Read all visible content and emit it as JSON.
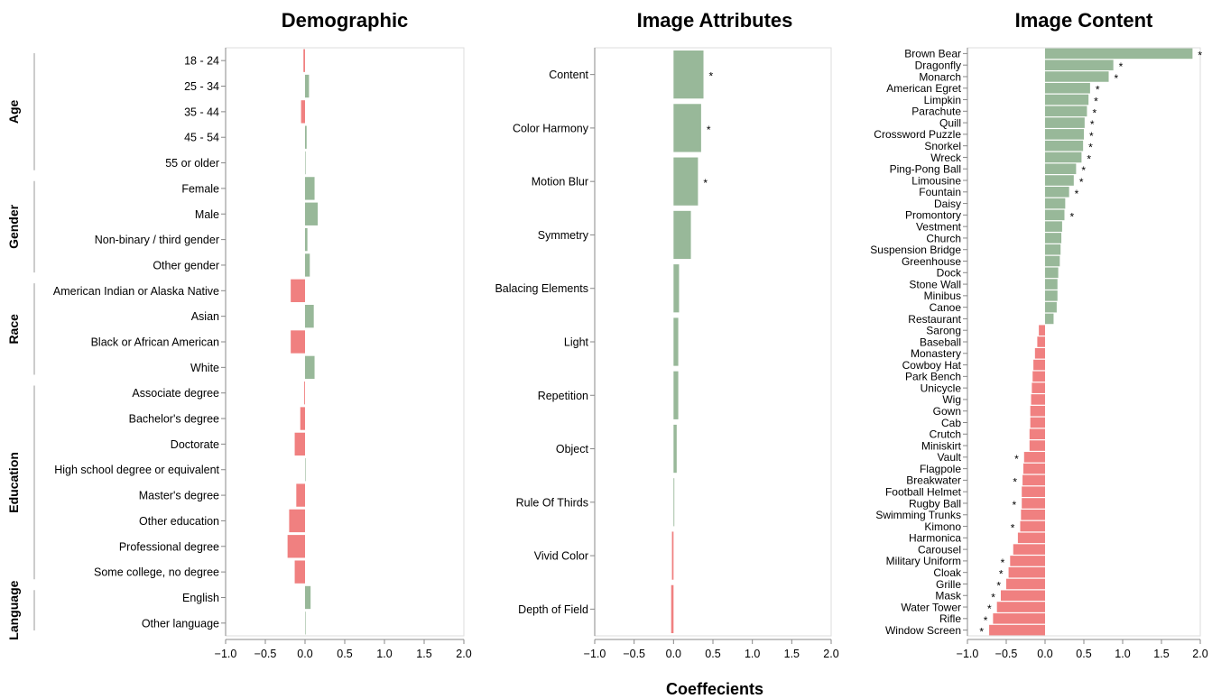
{
  "figure": {
    "shared_xlabel": "Coeffecients",
    "colors": {
      "positive": "#98b899",
      "negative": "#f08080",
      "axis": "#888888",
      "frame": "#dddddd"
    }
  },
  "chart_data": [
    {
      "type": "bar",
      "orientation": "horizontal",
      "title": "Demographic",
      "xlim": [
        -1.0,
        2.0
      ],
      "xticks": [
        "−1.0",
        "−0.5",
        "0.0",
        "0.5",
        "1.0",
        "1.5",
        "2.0"
      ],
      "xtick_values": [
        -1.0,
        -0.5,
        0.0,
        0.5,
        1.0,
        1.5,
        2.0
      ],
      "grid": false,
      "groups": [
        {
          "label": "Age",
          "items": [
            {
              "label": "18 - 24",
              "value": -0.02,
              "sig": false
            },
            {
              "label": "25 - 34",
              "value": 0.05,
              "sig": false
            },
            {
              "label": "35 - 44",
              "value": -0.05,
              "sig": false
            },
            {
              "label": "45 - 54",
              "value": 0.02,
              "sig": false
            },
            {
              "label": "55 or older",
              "value": 0.0,
              "sig": false
            }
          ]
        },
        {
          "label": "Gender",
          "items": [
            {
              "label": "Female",
              "value": 0.12,
              "sig": false
            },
            {
              "label": "Male",
              "value": 0.16,
              "sig": false
            },
            {
              "label": "Non-binary / third gender",
              "value": 0.03,
              "sig": false
            },
            {
              "label": "Other gender",
              "value": 0.06,
              "sig": false
            }
          ]
        },
        {
          "label": "Race",
          "items": [
            {
              "label": "American Indian or Alaska Native",
              "value": -0.18,
              "sig": false
            },
            {
              "label": "Asian",
              "value": 0.11,
              "sig": false
            },
            {
              "label": "Black or African American",
              "value": -0.18,
              "sig": false
            },
            {
              "label": "White",
              "value": 0.12,
              "sig": false
            }
          ]
        },
        {
          "label": "Education",
          "items": [
            {
              "label": "Associate degree",
              "value": -0.01,
              "sig": false
            },
            {
              "label": "Bachelor's degree",
              "value": -0.06,
              "sig": false
            },
            {
              "label": "Doctorate",
              "value": -0.13,
              "sig": false
            },
            {
              "label": "High school degree or equivalent",
              "value": 0.0,
              "sig": false
            },
            {
              "label": "Master's degree",
              "value": -0.11,
              "sig": false
            },
            {
              "label": "Other education",
              "value": -0.2,
              "sig": false
            },
            {
              "label": "Professional degree",
              "value": -0.22,
              "sig": false
            },
            {
              "label": "Some college, no degree",
              "value": -0.13,
              "sig": false
            }
          ]
        },
        {
          "label": "Language",
          "items": [
            {
              "label": "English",
              "value": 0.07,
              "sig": false
            },
            {
              "label": "Other language",
              "value": 0.0,
              "sig": false
            }
          ]
        }
      ]
    },
    {
      "type": "bar",
      "orientation": "horizontal",
      "title": "Image Attributes",
      "xlim": [
        -1.0,
        2.0
      ],
      "xticks": [
        "−1.0",
        "−0.5",
        "0.0",
        "0.5",
        "1.0",
        "1.5",
        "2.0"
      ],
      "xtick_values": [
        -1.0,
        -0.5,
        0.0,
        0.5,
        1.0,
        1.5,
        2.0
      ],
      "grid": false,
      "items": [
        {
          "label": "Content",
          "value": 0.38,
          "sig": true
        },
        {
          "label": "Color Harmony",
          "value": 0.35,
          "sig": true
        },
        {
          "label": "Motion Blur",
          "value": 0.31,
          "sig": true
        },
        {
          "label": "Symmetry",
          "value": 0.22,
          "sig": false
        },
        {
          "label": "Balacing Elements",
          "value": 0.07,
          "sig": false
        },
        {
          "label": "Light",
          "value": 0.06,
          "sig": false
        },
        {
          "label": "Repetition",
          "value": 0.06,
          "sig": false
        },
        {
          "label": "Object",
          "value": 0.04,
          "sig": false
        },
        {
          "label": "Rule Of Thirds",
          "value": 0.01,
          "sig": false
        },
        {
          "label": "Vivid Color",
          "value": -0.02,
          "sig": false
        },
        {
          "label": "Depth of Field",
          "value": -0.03,
          "sig": false
        }
      ]
    },
    {
      "type": "bar",
      "orientation": "horizontal",
      "title": "Image Content",
      "xlim": [
        -1.0,
        2.0
      ],
      "xticks": [
        "−1.0",
        "−0.5",
        "0.0",
        "0.5",
        "1.0",
        "1.5",
        "2.0"
      ],
      "xtick_values": [
        -1.0,
        -0.5,
        0.0,
        0.5,
        1.0,
        1.5,
        2.0
      ],
      "grid": false,
      "items": [
        {
          "label": "Brown Bear",
          "value": 1.9,
          "sig": true
        },
        {
          "label": "Dragonfly",
          "value": 0.88,
          "sig": true
        },
        {
          "label": "Monarch",
          "value": 0.82,
          "sig": true
        },
        {
          "label": "American Egret",
          "value": 0.58,
          "sig": true
        },
        {
          "label": "Limpkin",
          "value": 0.56,
          "sig": true
        },
        {
          "label": "Parachute",
          "value": 0.54,
          "sig": true
        },
        {
          "label": "Quill",
          "value": 0.51,
          "sig": true
        },
        {
          "label": "Crossword Puzzle",
          "value": 0.5,
          "sig": true
        },
        {
          "label": "Snorkel",
          "value": 0.49,
          "sig": true
        },
        {
          "label": "Wreck",
          "value": 0.47,
          "sig": true
        },
        {
          "label": "Ping-Pong Ball",
          "value": 0.4,
          "sig": true
        },
        {
          "label": "Limousine",
          "value": 0.37,
          "sig": true
        },
        {
          "label": "Fountain",
          "value": 0.31,
          "sig": true
        },
        {
          "label": "Daisy",
          "value": 0.26,
          "sig": false
        },
        {
          "label": "Promontory",
          "value": 0.25,
          "sig": true
        },
        {
          "label": "Vestment",
          "value": 0.22,
          "sig": false
        },
        {
          "label": "Church",
          "value": 0.21,
          "sig": false
        },
        {
          "label": "Suspension Bridge",
          "value": 0.2,
          "sig": false
        },
        {
          "label": "Greenhouse",
          "value": 0.19,
          "sig": false
        },
        {
          "label": "Dock",
          "value": 0.17,
          "sig": false
        },
        {
          "label": "Stone Wall",
          "value": 0.16,
          "sig": false
        },
        {
          "label": "Minibus",
          "value": 0.16,
          "sig": false
        },
        {
          "label": "Canoe",
          "value": 0.15,
          "sig": false
        },
        {
          "label": "Restaurant",
          "value": 0.11,
          "sig": false
        },
        {
          "label": "Sarong",
          "value": -0.08,
          "sig": false
        },
        {
          "label": "Baseball",
          "value": -0.1,
          "sig": false
        },
        {
          "label": "Monastery",
          "value": -0.13,
          "sig": false
        },
        {
          "label": "Cowboy Hat",
          "value": -0.15,
          "sig": false
        },
        {
          "label": "Park Bench",
          "value": -0.16,
          "sig": false
        },
        {
          "label": "Unicycle",
          "value": -0.17,
          "sig": false
        },
        {
          "label": "Wig",
          "value": -0.18,
          "sig": false
        },
        {
          "label": "Gown",
          "value": -0.19,
          "sig": false
        },
        {
          "label": "Cab",
          "value": -0.19,
          "sig": false
        },
        {
          "label": "Crutch",
          "value": -0.2,
          "sig": false
        },
        {
          "label": "Miniskirt",
          "value": -0.2,
          "sig": false
        },
        {
          "label": "Vault",
          "value": -0.27,
          "sig": true
        },
        {
          "label": "Flagpole",
          "value": -0.28,
          "sig": false
        },
        {
          "label": "Breakwater",
          "value": -0.29,
          "sig": true
        },
        {
          "label": "Football Helmet",
          "value": -0.3,
          "sig": false
        },
        {
          "label": "Rugby Ball",
          "value": -0.3,
          "sig": true
        },
        {
          "label": "Swimming Trunks",
          "value": -0.31,
          "sig": false
        },
        {
          "label": "Kimono",
          "value": -0.32,
          "sig": true
        },
        {
          "label": "Harmonica",
          "value": -0.35,
          "sig": false
        },
        {
          "label": "Carousel",
          "value": -0.41,
          "sig": false
        },
        {
          "label": "Military Uniform",
          "value": -0.45,
          "sig": true
        },
        {
          "label": "Cloak",
          "value": -0.47,
          "sig": true
        },
        {
          "label": "Grille",
          "value": -0.5,
          "sig": true
        },
        {
          "label": "Mask",
          "value": -0.57,
          "sig": true
        },
        {
          "label": "Water Tower",
          "value": -0.62,
          "sig": true
        },
        {
          "label": "Rifle",
          "value": -0.67,
          "sig": true
        },
        {
          "label": "Window Screen",
          "value": -0.72,
          "sig": true
        }
      ]
    }
  ]
}
